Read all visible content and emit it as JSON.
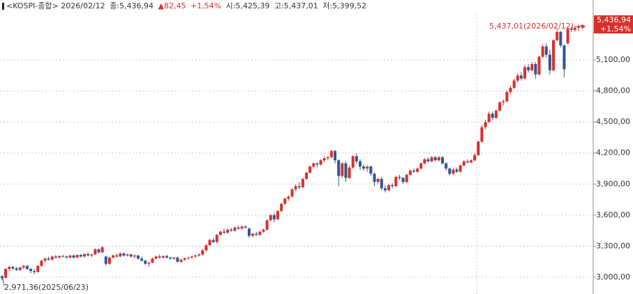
{
  "chart_data": {
    "type": "candlestick",
    "header": {
      "name": "<KOSPI-종합>",
      "date": "2026/02/12",
      "close": "종:5,436,94",
      "change": "▲82,45",
      "pct": "+1,54%",
      "open": "시:5,425,39",
      "high": "고:5,437,01",
      "low": "저:5,399,52"
    },
    "annotations": {
      "high": "5,437,01(2026/02/12)",
      "low": "2,971,36(2025/06/23)",
      "last": "5,436,94",
      "last_pct": "+1,54%"
    },
    "up_color": "#d9302b",
    "down_color": "#2f5597",
    "grid": true,
    "ylim": [
      2838,
      5679
    ],
    "yticks": [
      {
        "value": 3000,
        "label": "3,000,00"
      },
      {
        "value": 3300,
        "label": "3,300,00"
      },
      {
        "value": 3600,
        "label": "3,600,00"
      },
      {
        "value": 3900,
        "label": "3,900,00"
      },
      {
        "value": 4200,
        "label": "4,200,00"
      },
      {
        "value": 4500,
        "label": "4,500,00"
      },
      {
        "value": 4800,
        "label": "4,800,00"
      },
      {
        "value": 5100,
        "label": "5,100,00"
      }
    ],
    "ohlc": [
      [
        3010,
        3020,
        2971.36,
        2990
      ],
      [
        2995,
        3090,
        2990,
        3080
      ],
      [
        3080,
        3110,
        3060,
        3100
      ],
      [
        3100,
        3110,
        3070,
        3085
      ],
      [
        3085,
        3100,
        3060,
        3070
      ],
      [
        3070,
        3100,
        3060,
        3095
      ],
      [
        3095,
        3120,
        3080,
        3110
      ],
      [
        3110,
        3115,
        3070,
        3080
      ],
      [
        3080,
        3090,
        3040,
        3060
      ],
      [
        3060,
        3080,
        3030,
        3050
      ],
      [
        3050,
        3120,
        3045,
        3110
      ],
      [
        3110,
        3170,
        3100,
        3160
      ],
      [
        3160,
        3190,
        3140,
        3180
      ],
      [
        3180,
        3200,
        3160,
        3170
      ],
      [
        3170,
        3210,
        3160,
        3200
      ],
      [
        3200,
        3215,
        3180,
        3190
      ],
      [
        3190,
        3210,
        3180,
        3205
      ],
      [
        3205,
        3215,
        3190,
        3200
      ],
      [
        3200,
        3210,
        3180,
        3190
      ],
      [
        3190,
        3215,
        3185,
        3210
      ],
      [
        3210,
        3220,
        3180,
        3190
      ],
      [
        3190,
        3220,
        3185,
        3215
      ],
      [
        3215,
        3225,
        3190,
        3200
      ],
      [
        3200,
        3230,
        3190,
        3225
      ],
      [
        3225,
        3240,
        3200,
        3210
      ],
      [
        3210,
        3230,
        3190,
        3220
      ],
      [
        3220,
        3280,
        3215,
        3270
      ],
      [
        3270,
        3280,
        3230,
        3240
      ],
      [
        3240,
        3300,
        3230,
        3290
      ],
      [
        3200,
        3210,
        3110,
        3130
      ],
      [
        3130,
        3200,
        3120,
        3190
      ],
      [
        3190,
        3220,
        3180,
        3210
      ],
      [
        3210,
        3230,
        3190,
        3200
      ],
      [
        3200,
        3240,
        3195,
        3230
      ],
      [
        3230,
        3240,
        3200,
        3210
      ],
      [
        3210,
        3230,
        3200,
        3220
      ],
      [
        3220,
        3225,
        3190,
        3200
      ],
      [
        3200,
        3220,
        3180,
        3210
      ],
      [
        3210,
        3215,
        3170,
        3180
      ],
      [
        3180,
        3200,
        3150,
        3160
      ],
      [
        3160,
        3170,
        3120,
        3130
      ],
      [
        3130,
        3150,
        3100,
        3140
      ],
      [
        3140,
        3190,
        3135,
        3180
      ],
      [
        3180,
        3210,
        3170,
        3200
      ],
      [
        3200,
        3220,
        3180,
        3190
      ],
      [
        3190,
        3210,
        3180,
        3205
      ],
      [
        3205,
        3215,
        3180,
        3190
      ],
      [
        3190,
        3200,
        3170,
        3180
      ],
      [
        3180,
        3195,
        3170,
        3190
      ],
      [
        3190,
        3200,
        3140,
        3150
      ],
      [
        3150,
        3180,
        3140,
        3170
      ],
      [
        3170,
        3190,
        3160,
        3185
      ],
      [
        3185,
        3200,
        3170,
        3190
      ],
      [
        3190,
        3210,
        3180,
        3200
      ],
      [
        3200,
        3220,
        3190,
        3210
      ],
      [
        3210,
        3230,
        3200,
        3220
      ],
      [
        3220,
        3270,
        3210,
        3260
      ],
      [
        3260,
        3320,
        3250,
        3310
      ],
      [
        3310,
        3370,
        3300,
        3360
      ],
      [
        3360,
        3380,
        3330,
        3340
      ],
      [
        3340,
        3420,
        3330,
        3410
      ],
      [
        3410,
        3450,
        3400,
        3440
      ],
      [
        3440,
        3470,
        3420,
        3430
      ],
      [
        3430,
        3470,
        3420,
        3460
      ],
      [
        3460,
        3480,
        3440,
        3450
      ],
      [
        3450,
        3490,
        3440,
        3480
      ],
      [
        3480,
        3500,
        3460,
        3470
      ],
      [
        3470,
        3500,
        3460,
        3490
      ],
      [
        3490,
        3500,
        3470,
        3480
      ],
      [
        3470,
        3480,
        3380,
        3400
      ],
      [
        3400,
        3430,
        3390,
        3420
      ],
      [
        3420,
        3440,
        3400,
        3410
      ],
      [
        3410,
        3450,
        3400,
        3440
      ],
      [
        3440,
        3470,
        3430,
        3460
      ],
      [
        3460,
        3560,
        3450,
        3550
      ],
      [
        3550,
        3610,
        3540,
        3600
      ],
      [
        3600,
        3620,
        3530,
        3560
      ],
      [
        3560,
        3650,
        3550,
        3640
      ],
      [
        3640,
        3720,
        3630,
        3710
      ],
      [
        3710,
        3770,
        3700,
        3760
      ],
      [
        3760,
        3790,
        3740,
        3780
      ],
      [
        3780,
        3860,
        3770,
        3850
      ],
      [
        3850,
        3900,
        3830,
        3880
      ],
      [
        3880,
        3920,
        3850,
        3870
      ],
      [
        3870,
        3960,
        3860,
        3950
      ],
      [
        3950,
        4020,
        3940,
        4010
      ],
      [
        4010,
        4080,
        4000,
        4070
      ],
      [
        4070,
        4110,
        4050,
        4100
      ],
      [
        4100,
        4110,
        4060,
        4090
      ],
      [
        4090,
        4140,
        4080,
        4130
      ],
      [
        4130,
        4170,
        4110,
        4150
      ],
      [
        4150,
        4170,
        4130,
        4160
      ],
      [
        4160,
        4230,
        4150,
        4220
      ],
      [
        4220,
        4230,
        4100,
        4130
      ],
      [
        4130,
        4140,
        3880,
        3980
      ],
      [
        3980,
        4110,
        3960,
        4100
      ],
      [
        4100,
        4120,
        3920,
        3960
      ],
      [
        3960,
        4080,
        3950,
        4060
      ],
      [
        4060,
        4180,
        4050,
        4170
      ],
      [
        4170,
        4200,
        4100,
        4120
      ],
      [
        4120,
        4140,
        4040,
        4070
      ],
      [
        4070,
        4090,
        4030,
        4050
      ],
      [
        4050,
        4080,
        4020,
        4070
      ],
      [
        4070,
        4080,
        3980,
        4000
      ],
      [
        4000,
        4010,
        3880,
        3920
      ],
      [
        3920,
        3960,
        3900,
        3950
      ],
      [
        3950,
        3970,
        3840,
        3860
      ],
      [
        3860,
        3890,
        3820,
        3840
      ],
      [
        3840,
        3900,
        3830,
        3890
      ],
      [
        3890,
        3910,
        3860,
        3880
      ],
      [
        3880,
        3980,
        3870,
        3970
      ],
      [
        3970,
        3990,
        3940,
        3960
      ],
      [
        3960,
        3970,
        3900,
        3920
      ],
      [
        3920,
        4000,
        3910,
        3990
      ],
      [
        3990,
        4040,
        3980,
        4030
      ],
      [
        4030,
        4050,
        4010,
        4020
      ],
      [
        4020,
        4060,
        4010,
        4050
      ],
      [
        4050,
        4110,
        4040,
        4100
      ],
      [
        4100,
        4150,
        4090,
        4140
      ],
      [
        4140,
        4160,
        4110,
        4120
      ],
      [
        4120,
        4170,
        4110,
        4160
      ],
      [
        4160,
        4170,
        4120,
        4130
      ],
      [
        4130,
        4170,
        4120,
        4160
      ],
      [
        4160,
        4170,
        4090,
        4100
      ],
      [
        4100,
        4110,
        4030,
        4050
      ],
      [
        4050,
        4060,
        3980,
        4000
      ],
      [
        4000,
        4050,
        3990,
        4040
      ],
      [
        4040,
        4060,
        4010,
        4020
      ],
      [
        4020,
        4090,
        4010,
        4080
      ],
      [
        4080,
        4130,
        4070,
        4120
      ],
      [
        4120,
        4140,
        4100,
        4110
      ],
      [
        4110,
        4140,
        4100,
        4130
      ],
      [
        4130,
        4200,
        4120,
        4180
      ],
      [
        4180,
        4320,
        4170,
        4310
      ],
      [
        4310,
        4470,
        4300,
        4450
      ],
      [
        4450,
        4520,
        4430,
        4500
      ],
      [
        4500,
        4600,
        4490,
        4580
      ],
      [
        4580,
        4600,
        4520,
        4540
      ],
      [
        4540,
        4620,
        4530,
        4610
      ],
      [
        4610,
        4700,
        4600,
        4690
      ],
      [
        4690,
        4720,
        4660,
        4700
      ],
      [
        4700,
        4800,
        4690,
        4790
      ],
      [
        4790,
        4850,
        4770,
        4830
      ],
      [
        4830,
        4920,
        4820,
        4900
      ],
      [
        4900,
        4970,
        4880,
        4950
      ],
      [
        4950,
        4980,
        4900,
        4920
      ],
      [
        4920,
        5050,
        4910,
        5030
      ],
      [
        5030,
        5060,
        4980,
        5000
      ],
      [
        5000,
        5080,
        4990,
        5060
      ],
      [
        5060,
        5080,
        4920,
        4960
      ],
      [
        4960,
        5140,
        4950,
        5130
      ],
      [
        5130,
        5250,
        5120,
        5230
      ],
      [
        5230,
        5260,
        5120,
        5150
      ],
      [
        5150,
        5200,
        4960,
        5000
      ],
      [
        5000,
        5300,
        4990,
        5290
      ],
      [
        5290,
        5400,
        5280,
        5370
      ],
      [
        5370,
        5380,
        5220,
        5240
      ],
      [
        5240,
        5250,
        4930,
        5010
      ],
      [
        5260,
        5410,
        5250,
        5400
      ],
      [
        5400,
        5420,
        5370,
        5390
      ],
      [
        5390,
        5420,
        5370,
        5410
      ],
      [
        5410,
        5440,
        5380,
        5420
      ],
      [
        5425.39,
        5437.01,
        5399.52,
        5436.94
      ]
    ]
  }
}
